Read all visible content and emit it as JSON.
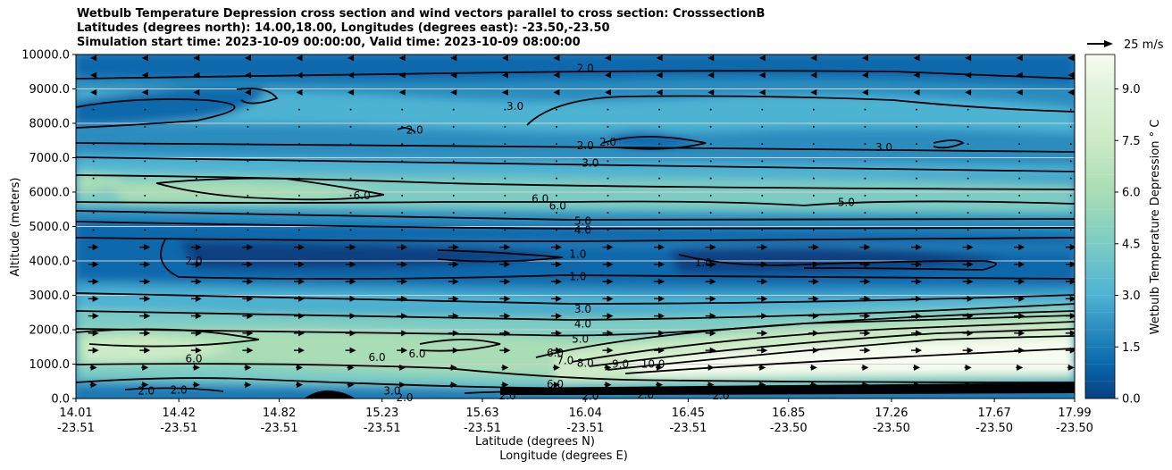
{
  "chart_data": {
    "type": "contour",
    "title": [
      "Wetbulb Temperature Depression cross section and wind vectors parallel to cross section: CrosssectionB",
      "Latitudes (degrees north): 14.00,18.00, Longitudes (degrees east): -23.50,-23.50",
      "Simulation start time: 2023-10-09 00:00:00, Valid time: 2023-10-09 08:00:00"
    ],
    "ylabel": "Altitude (meters)",
    "xlabel_lat": "Latitude (degrees N)",
    "xlabel_lon": "Longitude (degrees E)",
    "ylim": [
      0,
      10000
    ],
    "yticks": [
      "0.0",
      "1000.0",
      "2000.0",
      "3000.0",
      "4000.0",
      "5000.0",
      "6000.0",
      "7000.0",
      "8000.0",
      "9000.0",
      "10000.0"
    ],
    "ytick_values": [
      0,
      1000,
      2000,
      3000,
      4000,
      5000,
      6000,
      7000,
      8000,
      9000,
      10000
    ],
    "xticks_lat": [
      "14.01",
      "14.42",
      "14.82",
      "15.23",
      "15.63",
      "16.04",
      "16.45",
      "16.85",
      "17.26",
      "17.67",
      "17.99"
    ],
    "xticks_lon": [
      "-23.51",
      "-23.51",
      "-23.51",
      "-23.51",
      "-23.51",
      "-23.51",
      "-23.51",
      "-23.50",
      "-23.50",
      "-23.50",
      "-23.50"
    ],
    "xlim": [
      14.01,
      17.99
    ],
    "colorbar": {
      "label": "Wetbulb Temperature Depression ° C",
      "ticks": [
        "0.0",
        "1.5",
        "3.0",
        "4.5",
        "6.0",
        "7.5",
        "9.0"
      ],
      "tick_values": [
        0,
        1.5,
        3.0,
        4.5,
        6.0,
        7.5,
        9.0
      ],
      "range": [
        0,
        10
      ],
      "colormap": "GnBu_r"
    },
    "wind_key": "25 m/s",
    "contour_labels": [
      {
        "text": "2.0",
        "lat": 16.04,
        "alt": 9600
      },
      {
        "text": "3.0",
        "lat": 15.76,
        "alt": 8500
      },
      {
        "text": "2.0",
        "lat": 15.36,
        "alt": 7800
      },
      {
        "text": "2.0",
        "lat": 16.04,
        "alt": 7350
      },
      {
        "text": "2.0",
        "lat": 16.13,
        "alt": 7450
      },
      {
        "text": "3.0",
        "lat": 17.23,
        "alt": 7300
      },
      {
        "text": "3.0",
        "lat": 16.06,
        "alt": 6850
      },
      {
        "text": "6.0",
        "lat": 15.15,
        "alt": 5900
      },
      {
        "text": "6.0",
        "lat": 15.86,
        "alt": 5800
      },
      {
        "text": "6.0",
        "lat": 15.93,
        "alt": 5600
      },
      {
        "text": "5.0",
        "lat": 17.08,
        "alt": 5700
      },
      {
        "text": "5.0",
        "lat": 16.03,
        "alt": 5150
      },
      {
        "text": "4.0",
        "lat": 16.03,
        "alt": 4900
      },
      {
        "text": "2.0",
        "lat": 14.48,
        "alt": 4000
      },
      {
        "text": "1.0",
        "lat": 16.01,
        "alt": 4200
      },
      {
        "text": "1.0",
        "lat": 16.51,
        "alt": 3950
      },
      {
        "text": "1.0",
        "lat": 16.01,
        "alt": 3550
      },
      {
        "text": "3.0",
        "lat": 16.03,
        "alt": 2600
      },
      {
        "text": "4.0",
        "lat": 16.03,
        "alt": 2170
      },
      {
        "text": "5.0",
        "lat": 16.02,
        "alt": 1730
      },
      {
        "text": "6.0",
        "lat": 15.92,
        "alt": 1330
      },
      {
        "text": "7.0",
        "lat": 15.96,
        "alt": 1110
      },
      {
        "text": "8.0",
        "lat": 16.04,
        "alt": 1020
      },
      {
        "text": "9.0",
        "lat": 16.18,
        "alt": 1000
      },
      {
        "text": "10.0",
        "lat": 16.31,
        "alt": 1000
      },
      {
        "text": "6.0",
        "lat": 14.48,
        "alt": 1150
      },
      {
        "text": "6.0",
        "lat": 15.21,
        "alt": 1200
      },
      {
        "text": "6.0",
        "lat": 15.37,
        "alt": 1300
      },
      {
        "text": "6.0",
        "lat": 15.92,
        "alt": 420
      },
      {
        "text": "3.0",
        "lat": 15.27,
        "alt": 220
      },
      {
        "text": "2.0",
        "lat": 14.29,
        "alt": 220
      },
      {
        "text": "2.0",
        "lat": 14.42,
        "alt": 250
      },
      {
        "text": "2.0",
        "lat": 15.32,
        "alt": 20
      },
      {
        "text": "2.0",
        "lat": 15.73,
        "alt": 80
      },
      {
        "text": "2.0",
        "lat": 16.06,
        "alt": 60
      },
      {
        "text": "2.0",
        "lat": 16.28,
        "alt": 100
      },
      {
        "text": "2.0",
        "lat": 16.58,
        "alt": 80
      }
    ]
  }
}
